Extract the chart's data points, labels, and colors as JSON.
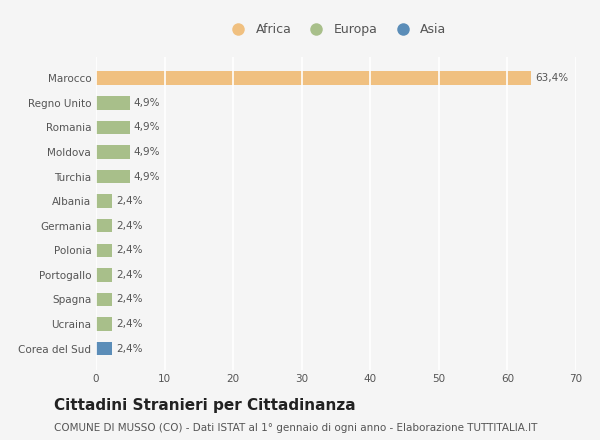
{
  "categories": [
    "Corea del Sud",
    "Ucraina",
    "Spagna",
    "Portogallo",
    "Polonia",
    "Germania",
    "Albania",
    "Turchia",
    "Moldova",
    "Romania",
    "Regno Unito",
    "Marocco"
  ],
  "values": [
    2.4,
    2.4,
    2.4,
    2.4,
    2.4,
    2.4,
    2.4,
    4.9,
    4.9,
    4.9,
    4.9,
    63.4
  ],
  "labels": [
    "2,4%",
    "2,4%",
    "2,4%",
    "2,4%",
    "2,4%",
    "2,4%",
    "2,4%",
    "4,9%",
    "4,9%",
    "4,9%",
    "4,9%",
    "63,4%"
  ],
  "colors": [
    "#5b8db8",
    "#a8bf8a",
    "#a8bf8a",
    "#a8bf8a",
    "#a8bf8a",
    "#a8bf8a",
    "#a8bf8a",
    "#a8bf8a",
    "#a8bf8a",
    "#a8bf8a",
    "#a8bf8a",
    "#f0c080"
  ],
  "legend_labels": [
    "Africa",
    "Europa",
    "Asia"
  ],
  "legend_colors": [
    "#f0c080",
    "#a8bf8a",
    "#5b8db8"
  ],
  "xlim": [
    0,
    70
  ],
  "xticks": [
    0,
    10,
    20,
    30,
    40,
    50,
    60,
    70
  ],
  "title": "Cittadini Stranieri per Cittadinanza",
  "subtitle": "COMUNE DI MUSSO (CO) - Dati ISTAT al 1° gennaio di ogni anno - Elaborazione TUTTITALIA.IT",
  "bg_color": "#f5f5f5",
  "grid_color": "#ffffff",
  "bar_height": 0.55,
  "title_fontsize": 11,
  "subtitle_fontsize": 7.5,
  "label_fontsize": 7.5,
  "tick_fontsize": 7.5,
  "legend_fontsize": 9
}
